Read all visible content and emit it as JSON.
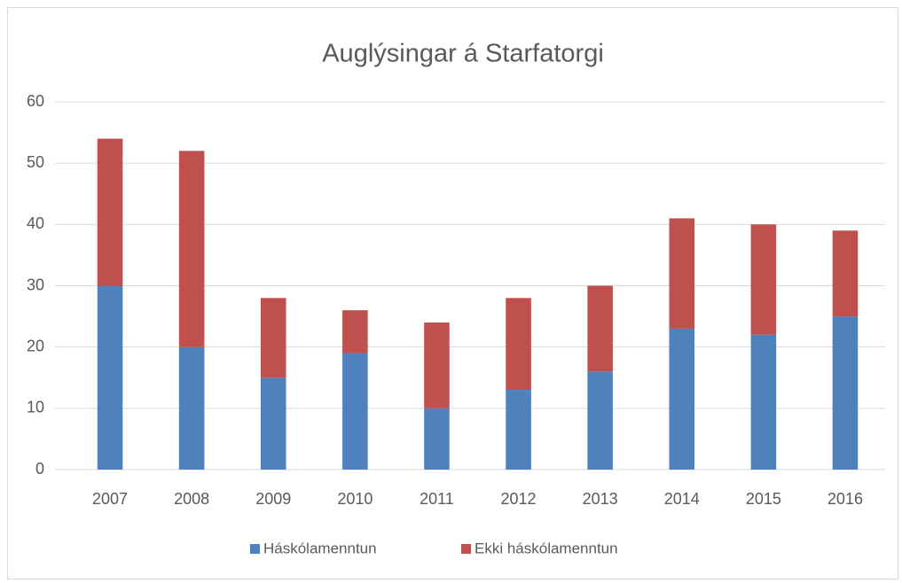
{
  "chart_data": {
    "type": "bar",
    "stacked": true,
    "title": "Auglýsingar á Starfatorgi",
    "categories": [
      "2007",
      "2008",
      "2009",
      "2010",
      "2011",
      "2012",
      "2013",
      "2014",
      "2015",
      "2016"
    ],
    "series": [
      {
        "name": "Háskólamenntun",
        "color": "#4f81bd",
        "values": [
          30,
          20,
          15,
          19,
          10,
          13,
          16,
          23,
          22,
          25
        ]
      },
      {
        "name": "Ekki háskólamenntun",
        "color": "#c0504d",
        "values": [
          24,
          32,
          13,
          7,
          14,
          15,
          14,
          18,
          18,
          14
        ]
      }
    ],
    "ylim": [
      0,
      60
    ],
    "yticks": [
      0,
      10,
      20,
      30,
      40,
      50,
      60
    ],
    "grid": true,
    "legend": "bottom"
  }
}
